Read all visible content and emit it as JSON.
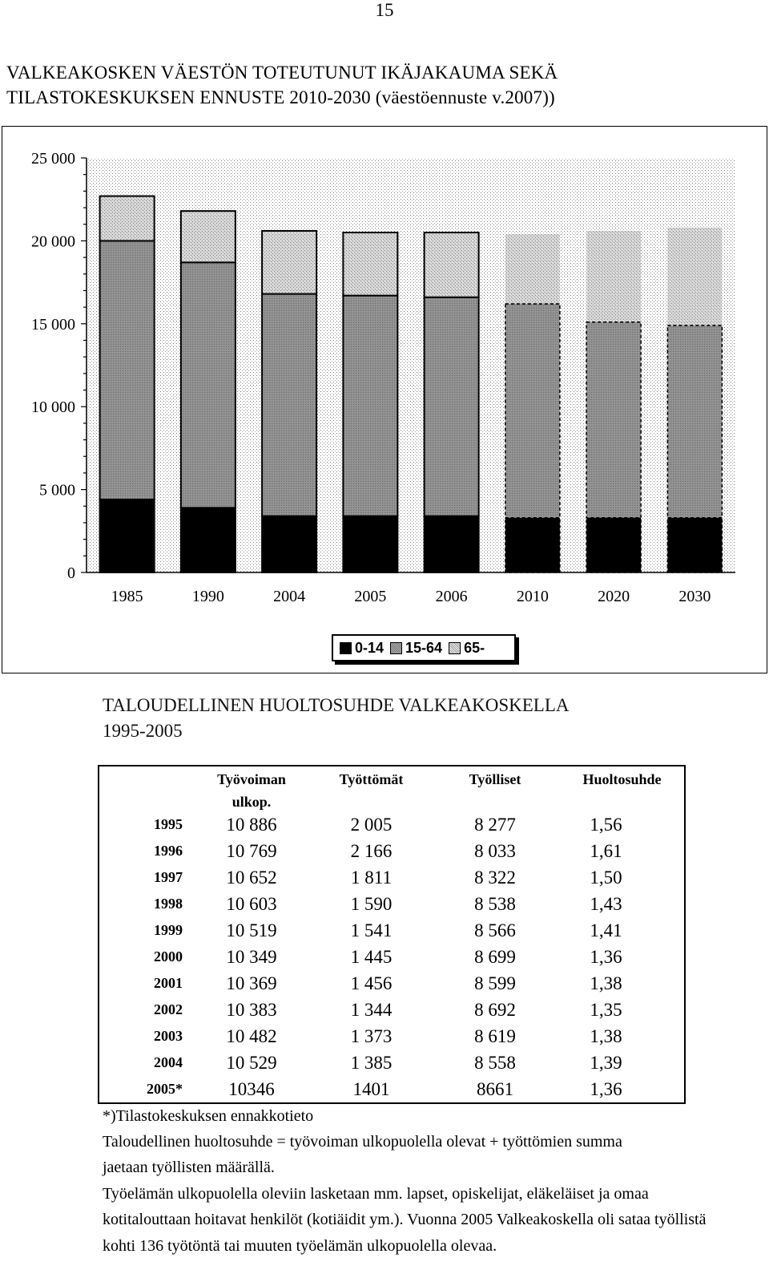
{
  "page_number": "15",
  "title": {
    "line1": "VALKEAKOSKEN VÄESTÖN TOTEUTUNUT IKÄJAKAUMA SEKÄ",
    "line2": "TILASTOKESKUKSEN ENNUSTE 2010-2030 (väestöennuste v.2007))"
  },
  "chart_data": {
    "type": "bar",
    "stacked": true,
    "categories": [
      "1985",
      "1990",
      "2004",
      "2005",
      "2006",
      "2010",
      "2020",
      "2030"
    ],
    "forecast_categories": [
      "2010",
      "2020",
      "2030"
    ],
    "ylim": [
      0,
      25000
    ],
    "yticks": [
      "25 000",
      "20 000",
      "15 000",
      "10 000",
      "5 000",
      "0"
    ],
    "ytick_values": [
      25000,
      20000,
      15000,
      10000,
      5000,
      0
    ],
    "series": [
      {
        "name": "0-14",
        "color": "#000000",
        "values": [
          4400,
          3900,
          3400,
          3400,
          3400,
          3300,
          3300,
          3300
        ]
      },
      {
        "name": "15-64",
        "color": "#8a8a8a",
        "values": [
          15600,
          14800,
          13400,
          13300,
          13200,
          12900,
          11800,
          11600
        ]
      },
      {
        "name": "65-",
        "color": "#cccccc",
        "values": [
          2700,
          3100,
          3800,
          3800,
          3900,
          4200,
          5500,
          5900
        ]
      }
    ],
    "grid": false,
    "legend_position": "bottom"
  },
  "legend": [
    {
      "label": "0-14"
    },
    {
      "label": "15-64"
    },
    {
      "label": "65-"
    }
  ],
  "subtitle": {
    "line1": "TALOUDELLINEN HUOLTOSUHDE VALKEAKOSKELLA",
    "line2": "1995-2005"
  },
  "table": {
    "headers": [
      "",
      "Työvoiman ulkop.",
      "Työttömät",
      "Työlliset",
      "Huoltosuhde"
    ],
    "header_line1": "Työvoiman",
    "header_line2": "ulkop.",
    "rows": [
      {
        "year": "1995",
        "outside": "10 886",
        "unemployed": "2 005",
        "employed": "8 277",
        "ratio": "1,56"
      },
      {
        "year": "1996",
        "outside": "10 769",
        "unemployed": "2 166",
        "employed": "8 033",
        "ratio": "1,61"
      },
      {
        "year": "1997",
        "outside": "10 652",
        "unemployed": "1 811",
        "employed": "8 322",
        "ratio": "1,50"
      },
      {
        "year": "1998",
        "outside": "10 603",
        "unemployed": "1 590",
        "employed": "8 538",
        "ratio": "1,43"
      },
      {
        "year": "1999",
        "outside": "10 519",
        "unemployed": "1 541",
        "employed": "8 566",
        "ratio": "1,41"
      },
      {
        "year": "2000",
        "outside": "10 349",
        "unemployed": "1 445",
        "employed": "8 699",
        "ratio": "1,36"
      },
      {
        "year": "2001",
        "outside": "10 369",
        "unemployed": "1 456",
        "employed": "8 599",
        "ratio": "1,38"
      },
      {
        "year": "2002",
        "outside": "10 383",
        "unemployed": "1 344",
        "employed": "8 692",
        "ratio": "1,35"
      },
      {
        "year": "2003",
        "outside": "10 482",
        "unemployed": "1 373",
        "employed": "8 619",
        "ratio": "1,38"
      },
      {
        "year": "2004",
        "outside": "10 529",
        "unemployed": "1 385",
        "employed": "8 558",
        "ratio": "1,39"
      },
      {
        "year": "2005*",
        "outside": "10346",
        "unemployed": "1401",
        "employed": "8661",
        "ratio": "1,36"
      }
    ]
  },
  "footnotes": [
    "*)Tilastokeskuksen ennakkotieto",
    "Taloudellinen huoltosuhde = työvoiman ulkopuolella olevat + työttömien summa",
    "jaetaan työllisten määrällä.",
    "Työelämän ulkopuolella oleviin lasketaan mm. lapset, opiskelijat, eläkeläiset ja omaa",
    "kotitalouttaan hoitavat henkilöt (kotiäidit ym.). Vuonna 2005 Valkeakoskella oli sataa työllistä",
    "kohti 136 työtöntä tai muuten työelämän ulkopuolella olevaa."
  ]
}
